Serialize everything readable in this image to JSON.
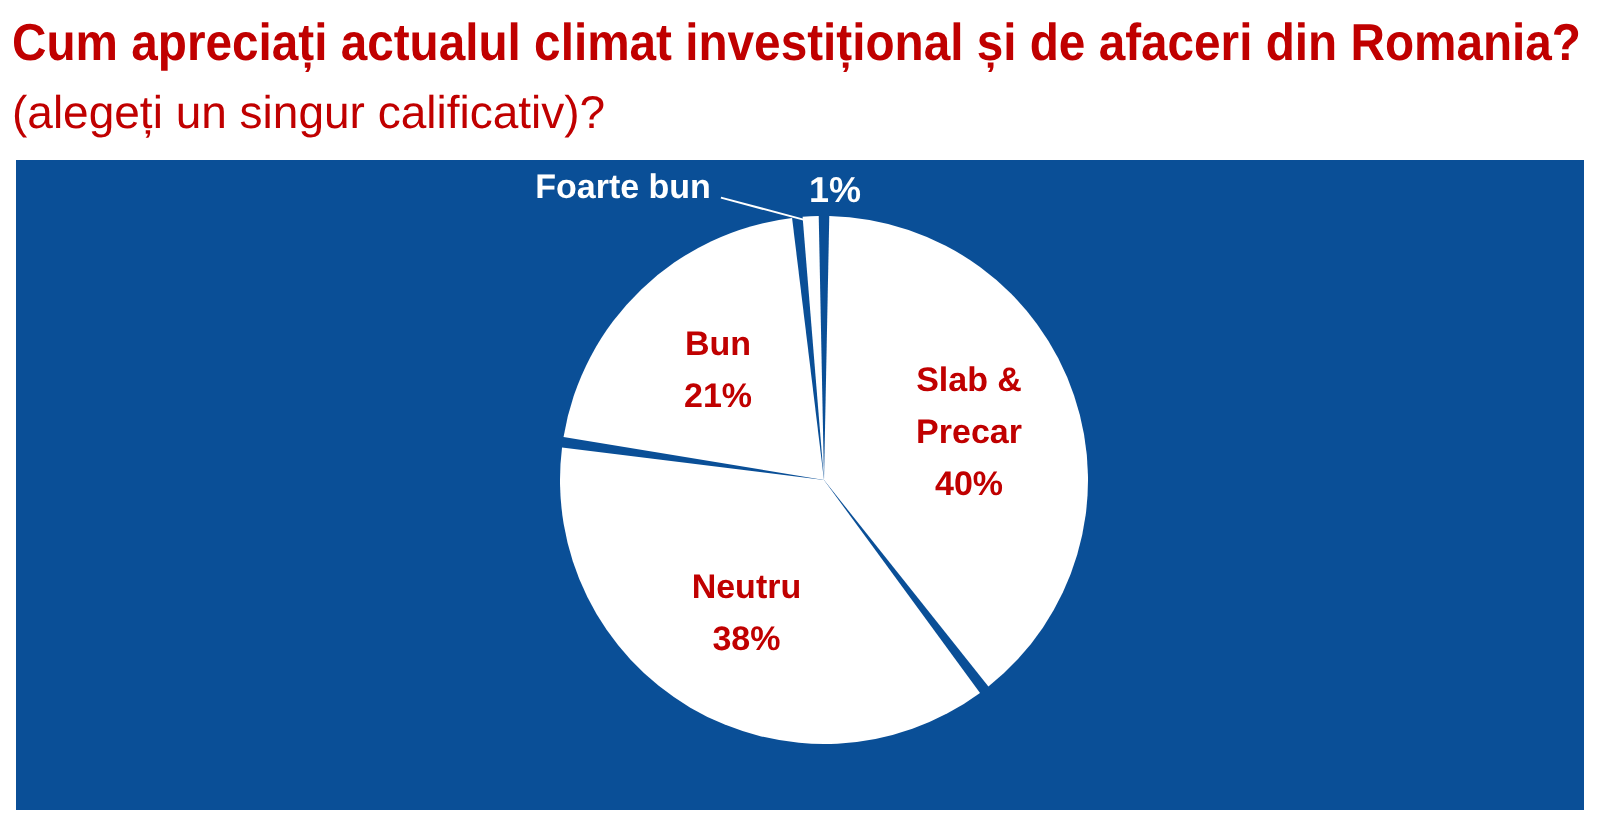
{
  "chart_data": {
    "type": "pie",
    "title": "Cum apreciați actualul climat investițional și de afaceri din Romania?",
    "subtitle": "(alegeți un singur calificativ)?",
    "categories": [
      "Slab & Precar",
      "Neutru",
      "Bun",
      "Foarte bun"
    ],
    "values": [
      40,
      38,
      21,
      1
    ],
    "colors": [
      "#ffffff",
      "#ffffff",
      "#ffffff",
      "#ffffff"
    ],
    "value_labels": [
      "40%",
      "38%",
      "21%",
      "1%"
    ]
  }
}
